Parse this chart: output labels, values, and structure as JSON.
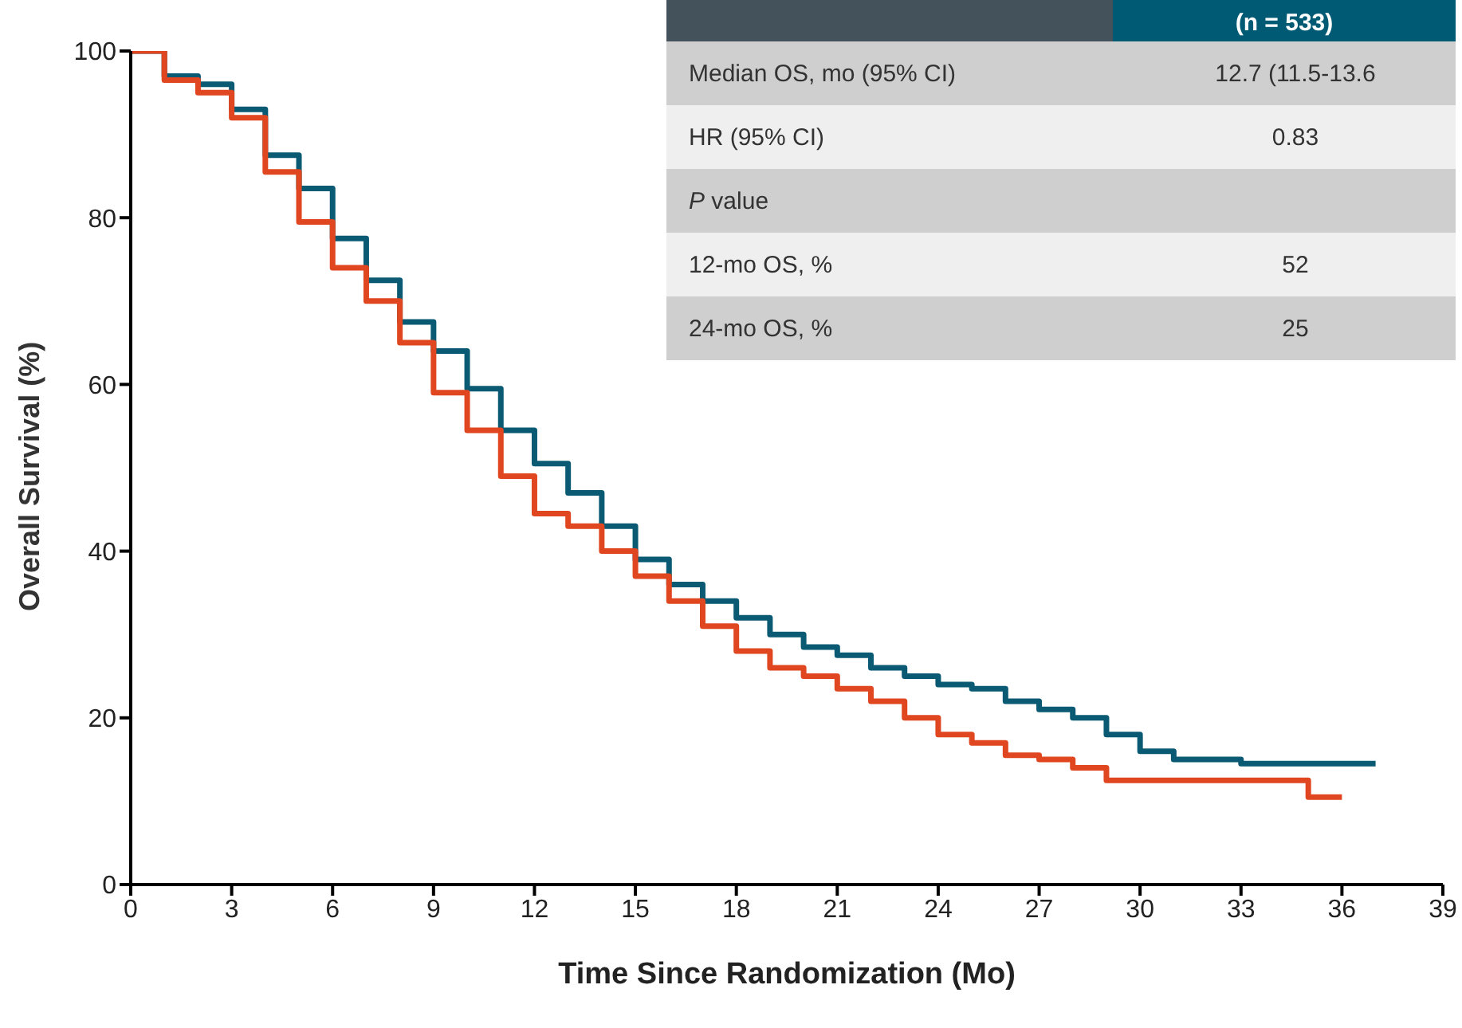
{
  "chart_data": {
    "type": "step",
    "xlabel": "Time Since Randomization (Mo)",
    "ylabel": "Overall Survival (%)",
    "x": [
      0,
      1,
      2,
      3,
      4,
      5,
      6,
      7,
      8,
      9,
      10,
      11,
      12,
      13,
      14,
      15,
      16,
      17,
      18,
      19,
      20,
      21,
      22,
      23,
      24,
      25,
      26,
      27,
      28,
      29,
      30,
      31,
      33,
      35,
      36,
      37
    ],
    "series": [
      {
        "color": "#0b5a73",
        "values": [
          100,
          97,
          96,
          93,
          87.5,
          83.5,
          77.5,
          72.5,
          67.5,
          64,
          59.5,
          54.5,
          50.5,
          47,
          43,
          39,
          36,
          34,
          32,
          30,
          28.5,
          27.5,
          26,
          25,
          24,
          23.5,
          22,
          21,
          20,
          18,
          16,
          15,
          14.5,
          14.5,
          14.5,
          14.5
        ]
      },
      {
        "color": "#e0461f",
        "values": [
          100,
          96.5,
          95,
          92,
          85.5,
          79.5,
          74,
          70,
          65,
          59,
          54.5,
          49,
          44.5,
          43,
          40,
          37,
          34,
          31,
          28,
          26,
          25,
          23.5,
          22,
          20,
          18,
          17,
          15.5,
          15,
          14,
          12.5,
          12.5,
          12.5,
          12.5,
          10.5,
          10.5,
          null
        ]
      }
    ],
    "xlim": [
      0,
      39
    ],
    "xticks": [
      0,
      3,
      6,
      9,
      12,
      15,
      18,
      21,
      24,
      27,
      30,
      33,
      36,
      39
    ],
    "ylim": [
      0,
      100
    ],
    "yticks": [
      0,
      20,
      40,
      60,
      80,
      100
    ],
    "grid": false,
    "legend": false,
    "marker": "none",
    "line_style": "solid",
    "annotations": [
      "(n = 533)",
      "Median OS, mo (95% CI)",
      "12.7 (11.5-13.6",
      "HR (95% CI)",
      "0.83",
      "P value",
      "12-mo OS, %",
      "52",
      "24-mo OS, %",
      "25"
    ]
  }
}
